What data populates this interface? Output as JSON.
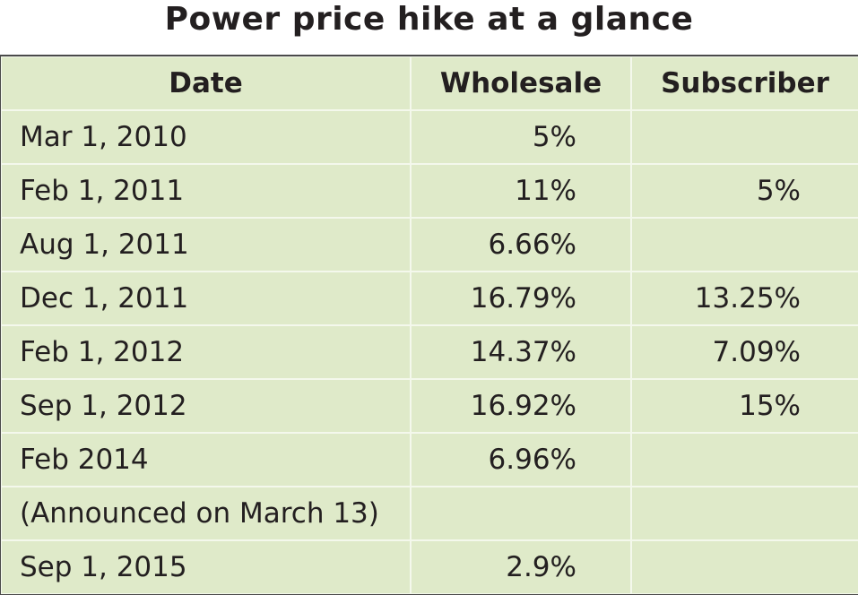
{
  "header": {
    "title": "Power price hike at a glance"
  },
  "table": {
    "columns": [
      "Date",
      "Wholesale",
      "Subscriber"
    ],
    "rows": [
      [
        "Mar 1, 2010",
        "5%",
        null
      ],
      [
        "Feb 1, 2011",
        "11%",
        "5%"
      ],
      [
        "Aug 1, 2011",
        "6.66%",
        null
      ],
      [
        "Dec 1, 2011",
        "16.79%",
        "13.25%"
      ],
      [
        "Feb 1, 2012",
        "14.37%",
        "7.09%"
      ],
      [
        "Sep 1, 2012",
        "16.92%",
        "15%"
      ],
      [
        "Feb 2014",
        "6.96%",
        null
      ],
      [
        "(Announced on March 13)",
        null,
        null
      ],
      [
        "Sep 1, 2015",
        "2.9%",
        null
      ]
    ]
  }
}
